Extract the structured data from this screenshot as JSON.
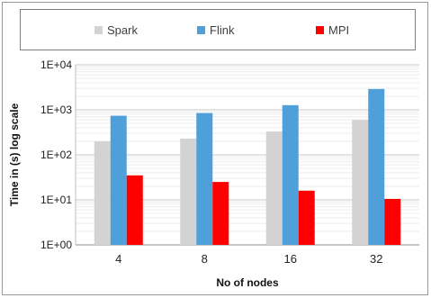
{
  "chart_data": {
    "type": "bar",
    "title": "",
    "xlabel": "No of nodes",
    "ylabel": "Time in (s) log scale",
    "y_scale": "log",
    "ylim": [
      1,
      10000
    ],
    "y_ticks": [
      1,
      10,
      100,
      1000,
      10000
    ],
    "y_tick_labels": [
      "1E+00",
      "1E+01",
      "1E+02",
      "1E+03",
      "1E+04"
    ],
    "categories": [
      "4",
      "8",
      "16",
      "32"
    ],
    "series": [
      {
        "name": "Spark",
        "color": "#d3d3d3",
        "values": [
          200,
          230,
          330,
          600
        ]
      },
      {
        "name": "Flink",
        "color": "#4f9fdb",
        "values": [
          740,
          850,
          1270,
          2900
        ]
      },
      {
        "name": "MPI",
        "color": "#ff0000",
        "values": [
          35,
          25,
          16,
          10.5
        ]
      }
    ],
    "grid": true,
    "legend_position": "top"
  }
}
